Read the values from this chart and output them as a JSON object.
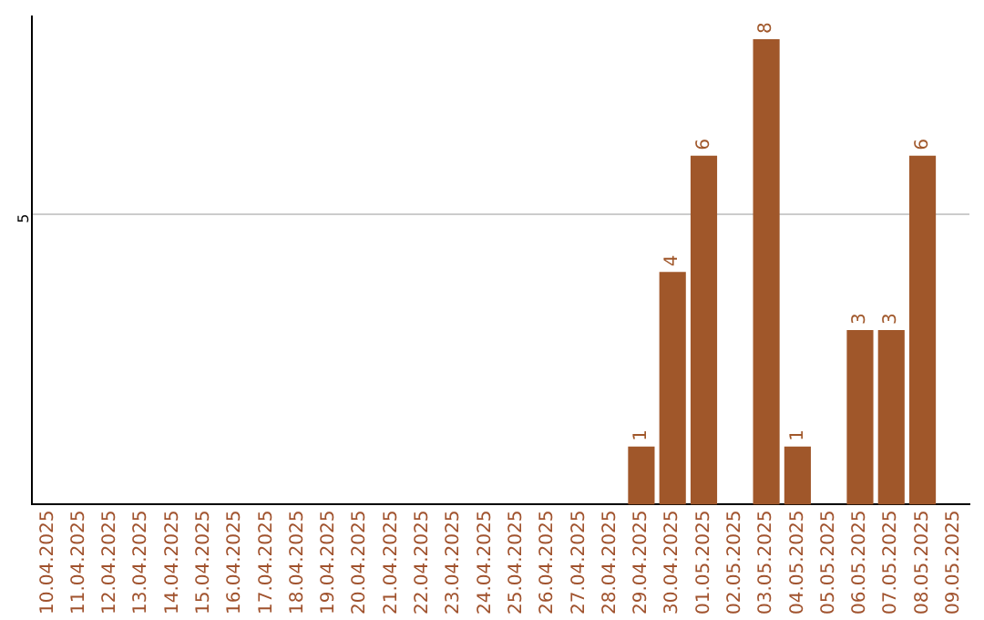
{
  "chart_data": {
    "type": "bar",
    "categories": [
      "10.04.2025",
      "11.04.2025",
      "12.04.2025",
      "13.04.2025",
      "14.04.2025",
      "15.04.2025",
      "16.04.2025",
      "17.04.2025",
      "18.04.2025",
      "19.04.2025",
      "20.04.2025",
      "21.04.2025",
      "22.04.2025",
      "23.04.2025",
      "24.04.2025",
      "25.04.2025",
      "26.04.2025",
      "27.04.2025",
      "28.04.2025",
      "29.04.2025",
      "30.04.2025",
      "01.05.2025",
      "02.05.2025",
      "03.05.2025",
      "04.05.2025",
      "05.05.2025",
      "06.05.2025",
      "07.05.2025",
      "08.05.2025",
      "09.05.2025"
    ],
    "values": [
      null,
      null,
      null,
      null,
      null,
      null,
      null,
      null,
      null,
      null,
      null,
      null,
      null,
      null,
      null,
      null,
      null,
      null,
      null,
      1,
      4,
      6,
      null,
      8,
      1,
      null,
      3,
      3,
      6,
      null
    ],
    "color": "#a0572a",
    "ylim": [
      0,
      8.4
    ],
    "yticks": [
      5
    ],
    "grid": "y",
    "data_labels": true
  }
}
